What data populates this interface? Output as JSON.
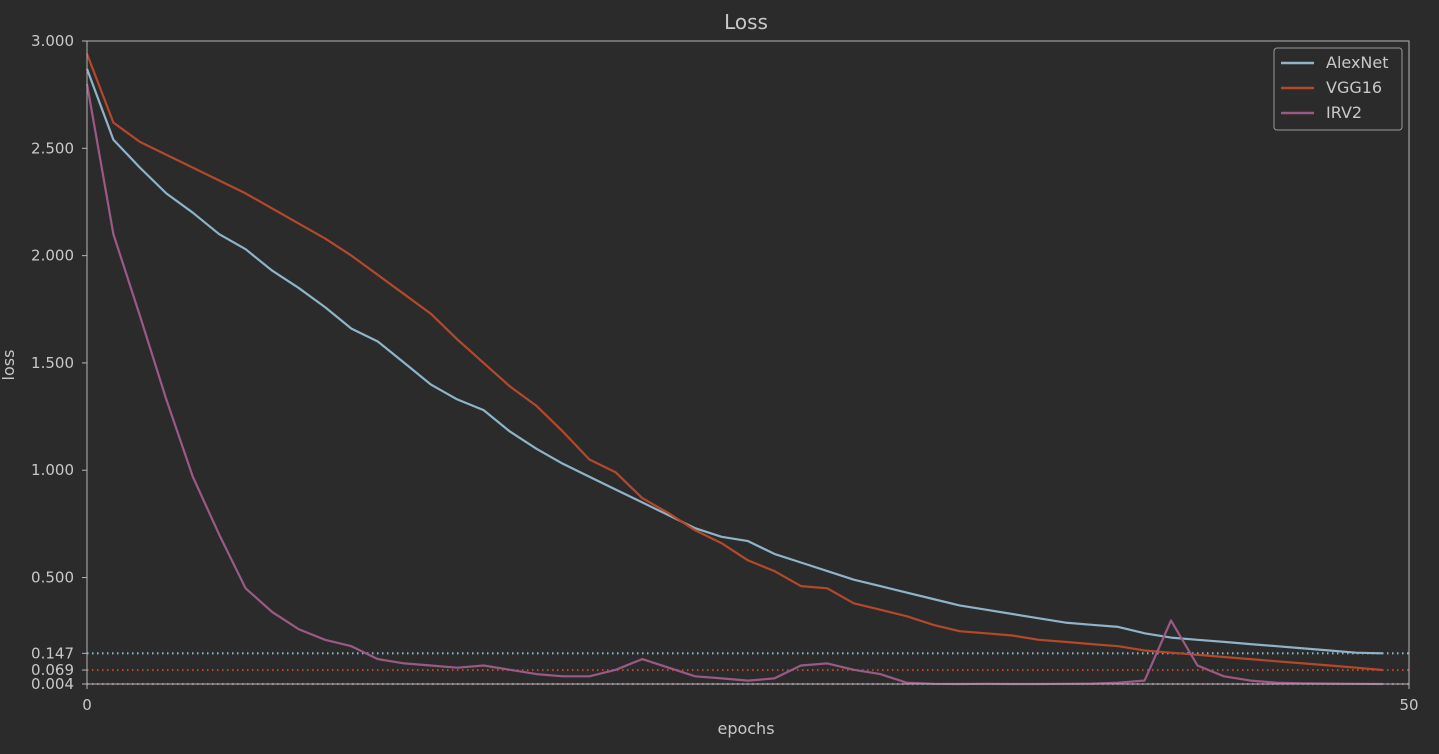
{
  "chart_data": {
    "type": "line",
    "title": "Loss",
    "xlabel": "epochs",
    "ylabel": "loss",
    "xlim": [
      0,
      50
    ],
    "ylim": [
      0.004,
      3.0
    ],
    "x_ticks": [
      "0",
      "50"
    ],
    "y_ticks": [
      "3.000",
      "2.500",
      "2.000",
      "1.500",
      "1.000",
      "0.500",
      "0.147",
      "0.069",
      "0.004"
    ],
    "grid": false,
    "legend_position": "top-right",
    "x": [
      0,
      1,
      2,
      3,
      4,
      5,
      6,
      7,
      8,
      9,
      10,
      11,
      12,
      13,
      14,
      15,
      16,
      17,
      18,
      19,
      20,
      21,
      22,
      23,
      24,
      25,
      26,
      27,
      28,
      29,
      30,
      31,
      32,
      33,
      34,
      35,
      36,
      37,
      38,
      39,
      40,
      41,
      42,
      43,
      44,
      45,
      46,
      47,
      48,
      49
    ],
    "series": [
      {
        "name": "AlexNet",
        "color": "#8fb3c9",
        "values": [
          2.87,
          2.54,
          2.41,
          2.29,
          2.2,
          2.1,
          2.03,
          1.93,
          1.85,
          1.76,
          1.66,
          1.6,
          1.5,
          1.4,
          1.33,
          1.28,
          1.18,
          1.1,
          1.03,
          0.97,
          0.91,
          0.85,
          0.79,
          0.73,
          0.69,
          0.67,
          0.61,
          0.57,
          0.53,
          0.49,
          0.46,
          0.43,
          0.4,
          0.37,
          0.35,
          0.33,
          0.31,
          0.29,
          0.28,
          0.27,
          0.24,
          0.22,
          0.21,
          0.2,
          0.19,
          0.18,
          0.17,
          0.16,
          0.15,
          0.147
        ]
      },
      {
        "name": "VGG16",
        "color": "#b5482a",
        "values": [
          2.94,
          2.62,
          2.53,
          2.47,
          2.41,
          2.35,
          2.29,
          2.22,
          2.15,
          2.08,
          2.0,
          1.91,
          1.82,
          1.73,
          1.61,
          1.5,
          1.39,
          1.3,
          1.18,
          1.05,
          0.99,
          0.87,
          0.8,
          0.72,
          0.66,
          0.58,
          0.53,
          0.46,
          0.45,
          0.38,
          0.35,
          0.32,
          0.28,
          0.25,
          0.24,
          0.23,
          0.21,
          0.2,
          0.19,
          0.18,
          0.16,
          0.15,
          0.14,
          0.13,
          0.12,
          0.11,
          0.1,
          0.09,
          0.08,
          0.069
        ]
      },
      {
        "name": "IRV2",
        "color": "#9b5a86",
        "values": [
          2.8,
          2.1,
          1.72,
          1.33,
          0.97,
          0.7,
          0.45,
          0.34,
          0.26,
          0.21,
          0.18,
          0.12,
          0.1,
          0.09,
          0.08,
          0.09,
          0.07,
          0.05,
          0.04,
          0.04,
          0.07,
          0.12,
          0.08,
          0.04,
          0.03,
          0.02,
          0.03,
          0.09,
          0.1,
          0.07,
          0.05,
          0.01,
          0.005,
          0.004,
          0.005,
          0.004,
          0.004,
          0.005,
          0.006,
          0.01,
          0.02,
          0.3,
          0.09,
          0.04,
          0.02,
          0.01,
          0.007,
          0.006,
          0.005,
          0.004
        ]
      }
    ],
    "reference_lines": [
      {
        "value": 0.147,
        "color": "#8fb3c9"
      },
      {
        "value": 0.069,
        "color": "#b5482a"
      },
      {
        "value": 0.004,
        "color": "#9b5a86"
      }
    ]
  }
}
